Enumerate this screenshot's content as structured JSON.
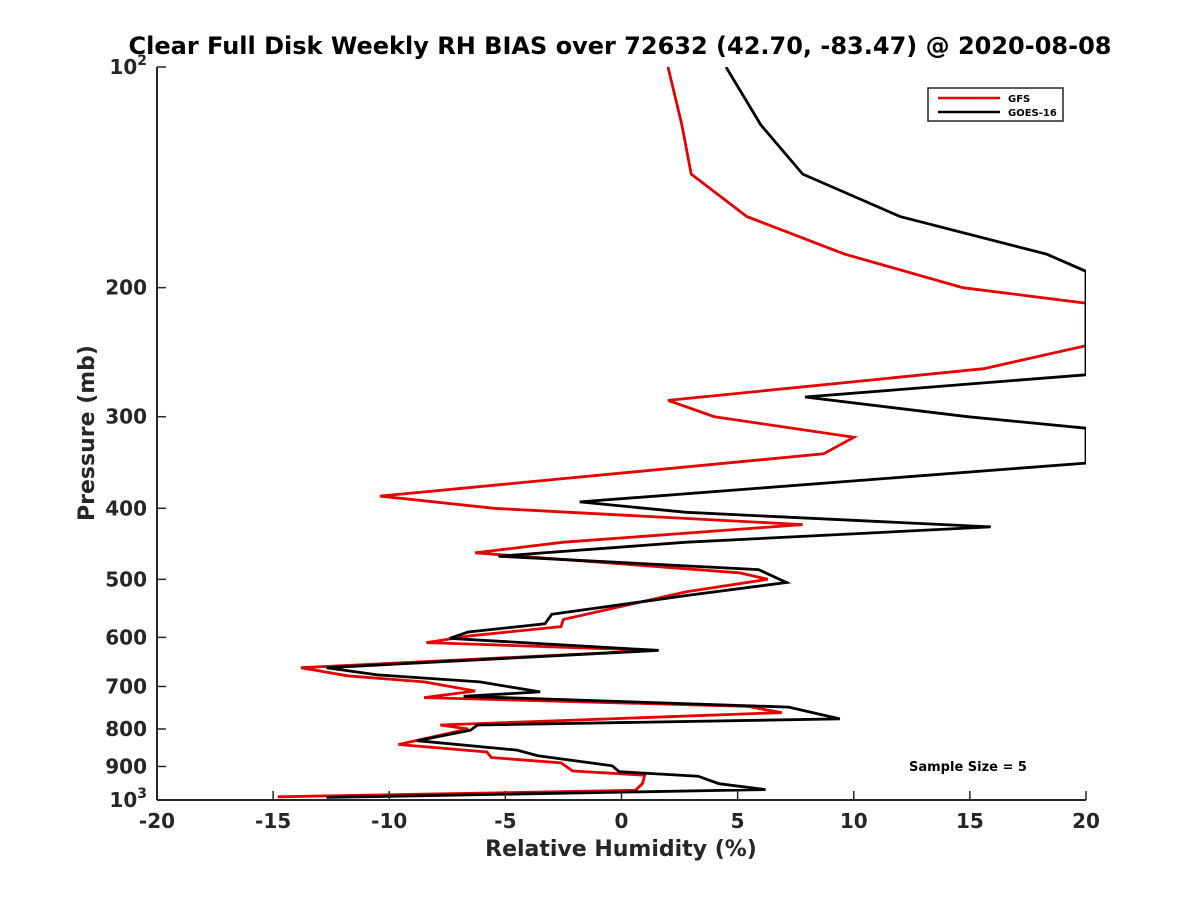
{
  "chart_data": {
    "type": "line",
    "title": "Clear Full Disk Weekly RH BIAS over 72632 (42.70, -83.47) @ 2020-08-08",
    "xlabel": "Relative Humidity (%)",
    "ylabel": "Pressure (mb)",
    "xlim": [
      -20,
      20
    ],
    "ylim": [
      100,
      1000
    ],
    "y_scale": "log",
    "y_reversed": true,
    "x_ticks": [
      -20,
      -15,
      -10,
      -5,
      0,
      5,
      10,
      15,
      20
    ],
    "x_tick_labels": [
      "-20",
      "-15",
      "-10",
      "-5",
      "0",
      "5",
      "10",
      "15",
      "20"
    ],
    "y_ticks": [
      100,
      200,
      300,
      400,
      500,
      600,
      700,
      800,
      900,
      1000
    ],
    "y_tick_labels": [
      {
        "base": "10",
        "exp": "2"
      },
      {
        "base": "200",
        "exp": ""
      },
      {
        "base": "300",
        "exp": ""
      },
      {
        "base": "400",
        "exp": ""
      },
      {
        "base": "500",
        "exp": ""
      },
      {
        "base": "600",
        "exp": ""
      },
      {
        "base": "700",
        "exp": ""
      },
      {
        "base": "800",
        "exp": ""
      },
      {
        "base": "900",
        "exp": ""
      },
      {
        "base": "10",
        "exp": "3"
      }
    ],
    "grid": false,
    "legend_position": "top-right",
    "annotation": "Sample Size = 5",
    "series": [
      {
        "name": "GFS",
        "color": "#e60000",
        "points": [
          [
            2.0,
            100
          ],
          [
            2.6,
            120
          ],
          [
            3.0,
            140
          ],
          [
            5.4,
            160
          ],
          [
            9.6,
            180
          ],
          [
            14.7,
            200
          ],
          [
            20.0,
            210
          ],
          [
            20.0,
            240
          ],
          [
            15.6,
            258
          ],
          [
            2.0,
            285
          ],
          [
            4.0,
            300
          ],
          [
            10.0,
            320
          ],
          [
            8.7,
            337
          ],
          [
            -10.4,
            385
          ],
          [
            -5.5,
            400
          ],
          [
            7.8,
            421
          ],
          [
            -2.5,
            445
          ],
          [
            -6.3,
            460
          ],
          [
            5.1,
            490
          ],
          [
            6.3,
            500
          ],
          [
            2.8,
            520
          ],
          [
            -2.5,
            567
          ],
          [
            -2.6,
            580
          ],
          [
            -6.5,
            597
          ],
          [
            -8.4,
            610
          ],
          [
            1.5,
            625
          ],
          [
            -13.8,
            660
          ],
          [
            -11.8,
            677
          ],
          [
            -8.5,
            690
          ],
          [
            -6.3,
            710
          ],
          [
            -8.5,
            725
          ],
          [
            5.4,
            745
          ],
          [
            6.9,
            760
          ],
          [
            -7.8,
            790
          ],
          [
            -6.6,
            800
          ],
          [
            -9.6,
            840
          ],
          [
            -5.8,
            860
          ],
          [
            -5.6,
            875
          ],
          [
            -2.6,
            890
          ],
          [
            -2.1,
            913
          ],
          [
            1.0,
            925
          ],
          [
            0.9,
            950
          ],
          [
            0.6,
            970
          ],
          [
            -14.8,
            990
          ]
        ]
      },
      {
        "name": "GOES-16",
        "color": "#000000",
        "points": [
          [
            4.5,
            100
          ],
          [
            6.0,
            120
          ],
          [
            7.8,
            140
          ],
          [
            12.0,
            160
          ],
          [
            18.3,
            180
          ],
          [
            20.0,
            190
          ],
          [
            20.0,
            263
          ],
          [
            7.9,
            282
          ],
          [
            14.9,
            300
          ],
          [
            20.0,
            311
          ],
          [
            20.0,
            347
          ],
          [
            -1.8,
            392
          ],
          [
            2.8,
            405
          ],
          [
            15.9,
            424
          ],
          [
            2.8,
            445
          ],
          [
            -5.3,
            465
          ],
          [
            5.9,
            485
          ],
          [
            7.1,
            505
          ],
          [
            3.0,
            525
          ],
          [
            -3.0,
            558
          ],
          [
            -3.3,
            575
          ],
          [
            -6.6,
            590
          ],
          [
            -7.4,
            602
          ],
          [
            1.6,
            625
          ],
          [
            -12.7,
            660
          ],
          [
            -10.5,
            675
          ],
          [
            -6.1,
            690
          ],
          [
            -3.5,
            712
          ],
          [
            -6.8,
            722
          ],
          [
            7.2,
            747
          ],
          [
            9.4,
            775
          ],
          [
            -6.2,
            790
          ],
          [
            -6.5,
            803
          ],
          [
            -8.8,
            830
          ],
          [
            -4.5,
            855
          ],
          [
            -3.6,
            870
          ],
          [
            -0.4,
            898
          ],
          [
            -0.1,
            915
          ],
          [
            3.3,
            928
          ],
          [
            4.2,
            950
          ],
          [
            6.2,
            968
          ],
          [
            -12.7,
            992
          ]
        ]
      }
    ]
  }
}
